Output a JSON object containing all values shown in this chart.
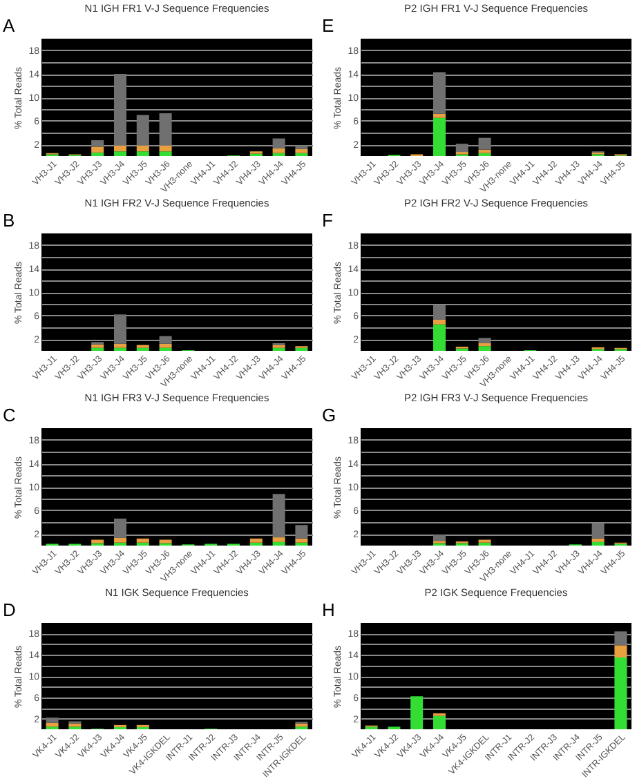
{
  "chart_data": [
    {
      "type": "bar",
      "stacked": true,
      "title": "N1 IGH FR1 V-J Sequence Frequencies",
      "ylabel": "% Total Reads",
      "annotations": [
        "A"
      ],
      "grid": "y",
      "ylim": [
        0,
        20
      ],
      "yticks": [
        2,
        {
          "value": 4,
          "label": null
        },
        6,
        {
          "value": 8,
          "label": null
        },
        10,
        {
          "value": 12,
          "label": null
        },
        14,
        {
          "value": 16,
          "label": null
        },
        18
      ],
      "categories": [
        "VH3-J1",
        "VH3-J2",
        "VH3-J3",
        "VH3-J4",
        "VH3-J5",
        "VH3-J6",
        "VH3-none",
        "VH4-J1",
        "VH4-J2",
        "VH4-J3",
        "VH4-J4",
        "VH4-J5"
      ],
      "series": [
        {
          "color": "#33dd33",
          "values": [
            0.3,
            0.2,
            0.6,
            0.8,
            0.8,
            0.8,
            0,
            0,
            0.1,
            0.4,
            0.5,
            0.5
          ]
        },
        {
          "color": "#e8a040",
          "values": [
            0.2,
            0.1,
            1.0,
            1.0,
            1.0,
            1.0,
            0,
            0,
            0,
            0.4,
            0.8,
            0.7
          ]
        },
        {
          "color": "#707070",
          "values": [
            0,
            0,
            1.1,
            12.2,
            5.2,
            5.5,
            0,
            0,
            0,
            0,
            1.7,
            0.6
          ]
        }
      ]
    },
    {
      "type": "bar",
      "stacked": true,
      "title": "P2 IGH FR1 V-J Sequence Frequencies",
      "ylabel": "% Total Reads",
      "annotations": [
        "E"
      ],
      "grid": "y",
      "ylim": [
        0,
        20
      ],
      "yticks": [
        2,
        {
          "value": 4,
          "label": null
        },
        6,
        {
          "value": 8,
          "label": null
        },
        10,
        {
          "value": 12,
          "label": null
        },
        14,
        {
          "value": 16,
          "label": null
        },
        18
      ],
      "categories": [
        "VH3-J1",
        "VH3-J2",
        "VH3-J3",
        "VH3-J4",
        "VH3-J5",
        "VH3-J6",
        "VH3-none",
        "VH4-J1",
        "VH4-J2",
        "VH4-J3",
        "VH4-J4",
        "VH4-J5"
      ],
      "series": [
        {
          "color": "#33dd33",
          "values": [
            0,
            0.2,
            0,
            6.5,
            0.3,
            0.5,
            0,
            0,
            0,
            0,
            0.3,
            0.1
          ]
        },
        {
          "color": "#e8a040",
          "values": [
            0,
            0,
            0.3,
            0.7,
            0.4,
            0.6,
            0,
            0,
            0,
            0,
            0.3,
            0.2
          ]
        },
        {
          "color": "#707070",
          "values": [
            0,
            0,
            0,
            7.1,
            1.4,
            2.0,
            0,
            0,
            0,
            0,
            0.2,
            0
          ]
        }
      ]
    },
    {
      "type": "bar",
      "stacked": true,
      "title": "N1 IGH FR2 V-J Sequence Frequencies",
      "ylabel": "% Total Reads",
      "annotations": [
        "B"
      ],
      "grid": "y",
      "ylim": [
        0,
        20
      ],
      "yticks": [
        2,
        {
          "value": 4,
          "label": null
        },
        6,
        {
          "value": 8,
          "label": null
        },
        10,
        {
          "value": 12,
          "label": null
        },
        14,
        {
          "value": 16,
          "label": null
        },
        18
      ],
      "categories": [
        "VH3-J1",
        "VH3-J2",
        "VH3-J3",
        "VH3-J4",
        "VH3-J5",
        "VH3-J6",
        "VH3-none",
        "VH4-J1",
        "VH4-J2",
        "VH4-J3",
        "VH4-J4",
        "VH4-J5"
      ],
      "series": [
        {
          "color": "#33dd33",
          "values": [
            0,
            0,
            0.5,
            0.5,
            0.5,
            0.5,
            0.1,
            0,
            0,
            0,
            0.5,
            0.5
          ]
        },
        {
          "color": "#e8a040",
          "values": [
            0,
            0,
            0.6,
            0.7,
            0.5,
            0.7,
            0,
            0,
            0,
            0,
            0.5,
            0.3
          ]
        },
        {
          "color": "#707070",
          "values": [
            0,
            0,
            0.4,
            5.0,
            0,
            1.3,
            0,
            0,
            0,
            0,
            0.3,
            0
          ]
        }
      ]
    },
    {
      "type": "bar",
      "stacked": true,
      "title": "P2 IGH FR2 V-J Sequence Frequencies",
      "ylabel": "% Total Reads",
      "annotations": [
        "F"
      ],
      "grid": "y",
      "ylim": [
        0,
        20
      ],
      "yticks": [
        2,
        {
          "value": 4,
          "label": null
        },
        6,
        {
          "value": 8,
          "label": null
        },
        10,
        {
          "value": 12,
          "label": null
        },
        14,
        {
          "value": 16,
          "label": null
        },
        18
      ],
      "categories": [
        "VH3-J1",
        "VH3-J2",
        "VH3-J3",
        "VH3-J4",
        "VH3-J5",
        "VH3-J6",
        "VH3-none",
        "VH4-J1",
        "VH4-J2",
        "VH4-J3",
        "VH4-J4",
        "VH4-J5"
      ],
      "series": [
        {
          "color": "#33dd33",
          "values": [
            0,
            0,
            0,
            4.5,
            0.4,
            0.8,
            0,
            0.1,
            0,
            0,
            0.3,
            0.3
          ]
        },
        {
          "color": "#e8a040",
          "values": [
            0,
            0,
            0,
            0.8,
            0.3,
            0.5,
            0,
            0,
            0,
            0,
            0.3,
            0.2
          ]
        },
        {
          "color": "#707070",
          "values": [
            0,
            0,
            0,
            2.5,
            0,
            0.9,
            0,
            0,
            0,
            0,
            0,
            0
          ]
        }
      ]
    },
    {
      "type": "bar",
      "stacked": true,
      "title": "N1 IGH FR3 V-J Sequence Frequencies",
      "ylabel": "% Total Reads",
      "annotations": [
        "C"
      ],
      "grid": "y",
      "ylim": [
        0,
        20
      ],
      "yticks": [
        2,
        {
          "value": 4,
          "label": null
        },
        6,
        {
          "value": 8,
          "label": null
        },
        10,
        {
          "value": 12,
          "label": null
        },
        14,
        {
          "value": 16,
          "label": null
        },
        18
      ],
      "categories": [
        "VH3-J1",
        "VH3-J2",
        "VH3-J3",
        "VH3-J4",
        "VH3-J5",
        "VH3-J6",
        "VH3-none",
        "VH4-J1",
        "VH4-J2",
        "VH4-J3",
        "VH4-J4",
        "VH4-J5"
      ],
      "series": [
        {
          "color": "#33dd33",
          "values": [
            0.3,
            0.3,
            0.4,
            0.5,
            0.5,
            0.4,
            0.2,
            0.3,
            0.3,
            0.5,
            0.6,
            0.5
          ]
        },
        {
          "color": "#e8a040",
          "values": [
            0,
            0,
            0.6,
            0.8,
            0.7,
            0.6,
            0,
            0,
            0,
            0.7,
            0.8,
            0.7
          ]
        },
        {
          "color": "#707070",
          "values": [
            0,
            0,
            0,
            3.3,
            0,
            0,
            0,
            0,
            0,
            0,
            7.4,
            2.3
          ]
        }
      ]
    },
    {
      "type": "bar",
      "stacked": true,
      "title": "P2 IGH FR3 V-J Sequence Frequencies",
      "ylabel": "% Total Reads",
      "annotations": [
        "G"
      ],
      "grid": "y",
      "ylim": [
        0,
        20
      ],
      "yticks": [
        2,
        {
          "value": 4,
          "label": null
        },
        6,
        {
          "value": 8,
          "label": null
        },
        10,
        {
          "value": 12,
          "label": null
        },
        14,
        {
          "value": 16,
          "label": null
        },
        18
      ],
      "categories": [
        "VH3-J1",
        "VH3-J2",
        "VH3-J3",
        "VH3-J4",
        "VH3-J5",
        "VH3-J6",
        "VH3-none",
        "VH4-J1",
        "VH4-J2",
        "VH4-J3",
        "VH4-J4",
        "VH4-J5"
      ],
      "series": [
        {
          "color": "#33dd33",
          "values": [
            0,
            0,
            0,
            0.4,
            0.4,
            0.5,
            0,
            0,
            0,
            0.2,
            0.6,
            0.3
          ]
        },
        {
          "color": "#e8a040",
          "values": [
            0,
            0,
            0,
            0.4,
            0.3,
            0.5,
            0,
            0,
            0,
            0,
            0.6,
            0.2
          ]
        },
        {
          "color": "#707070",
          "values": [
            0,
            0,
            0,
            1.1,
            0,
            0,
            0,
            0,
            0,
            0,
            2.6,
            0
          ]
        }
      ]
    },
    {
      "type": "bar",
      "stacked": true,
      "title": "N1 IGK Sequence Frequencies",
      "ylabel": "% Total Reads",
      "annotations": [
        "D"
      ],
      "grid": "y",
      "ylim": [
        0,
        20
      ],
      "yticks": [
        2,
        {
          "value": 4,
          "label": null
        },
        6,
        {
          "value": 8,
          "label": null
        },
        10,
        {
          "value": 12,
          "label": null
        },
        14,
        {
          "value": 16,
          "label": null
        },
        18
      ],
      "categories": [
        "VK4-J1",
        "VK4-J2",
        "VK4-J3",
        "VK4-J4",
        "VK4-J5",
        "VK4-IGKDEL",
        "INTR-J1",
        "INTR-J2",
        "INTR-J3",
        "INTR-J4",
        "INTR-J5",
        "INTR-IGKDEL"
      ],
      "series": [
        {
          "color": "#33dd33",
          "values": [
            0.5,
            0.5,
            0.1,
            0.4,
            0.4,
            0,
            0,
            0.1,
            0,
            0,
            0,
            0.5
          ]
        },
        {
          "color": "#e8a040",
          "values": [
            0.7,
            0.6,
            0,
            0.4,
            0.4,
            0,
            0,
            0,
            0,
            0,
            0,
            0.6
          ]
        },
        {
          "color": "#707070",
          "values": [
            1.0,
            0.4,
            0,
            0,
            0,
            0,
            0,
            0,
            0,
            0,
            0,
            0.3
          ]
        }
      ]
    },
    {
      "type": "bar",
      "stacked": true,
      "title": "P2 IGK Sequence Frequencies",
      "ylabel": "% Total Reads",
      "annotations": [
        "H"
      ],
      "grid": "y",
      "ylim": [
        0,
        20
      ],
      "yticks": [
        2,
        {
          "value": 4,
          "label": null
        },
        6,
        {
          "value": 8,
          "label": null
        },
        10,
        {
          "value": 12,
          "label": null
        },
        14,
        {
          "value": 16,
          "label": null
        },
        18
      ],
      "categories": [
        "VK4-J1",
        "VK4-J2",
        "VK4-J3",
        "VK4-J4",
        "VK4-J5",
        "VK4-IGKDEL",
        "INTR-J1",
        "INTR-J2",
        "INTR-J3",
        "INTR-J4",
        "INTR-J5",
        "INTR-IGKDEL"
      ],
      "series": [
        {
          "color": "#33dd33",
          "values": [
            0.5,
            0.5,
            6.2,
            2.5,
            0,
            0,
            0,
            0,
            0,
            0,
            0,
            13.5
          ]
        },
        {
          "color": "#e8a040",
          "values": [
            0.2,
            0,
            0,
            0.5,
            0,
            0,
            0,
            0,
            0,
            0,
            0,
            2.3
          ]
        },
        {
          "color": "#707070",
          "values": [
            0,
            0,
            0,
            0,
            0,
            0,
            0,
            0,
            0,
            0,
            0,
            2.6
          ]
        }
      ]
    }
  ]
}
